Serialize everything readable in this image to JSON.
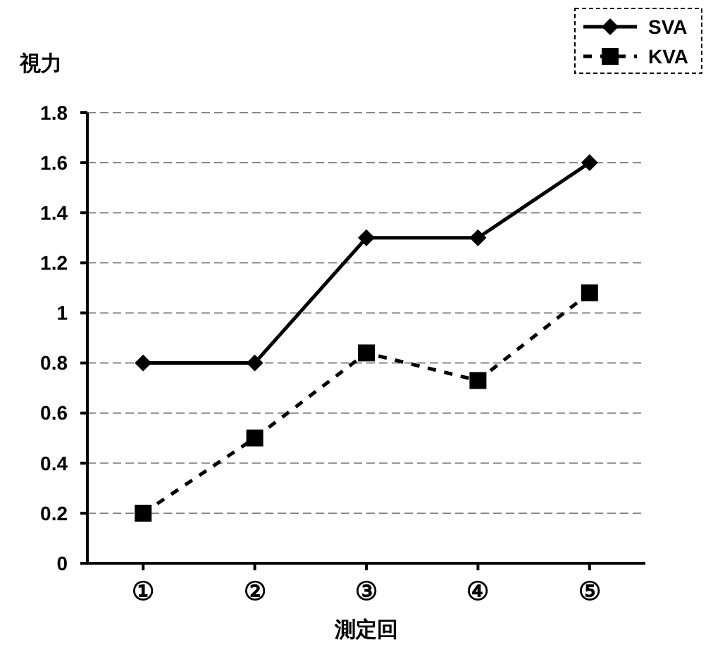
{
  "chart_data": {
    "type": "line",
    "ylabel": "視力",
    "xlabel": "測定回",
    "categories": [
      "①",
      "②",
      "③",
      "④",
      "⑤"
    ],
    "series": [
      {
        "name": "SVA",
        "color": "#000000",
        "values": [
          0.8,
          0.8,
          1.3,
          1.3,
          1.6
        ],
        "marker": "diamond",
        "line_style": "solid"
      },
      {
        "name": "KVA",
        "color": "#000000",
        "values": [
          0.2,
          0.5,
          0.84,
          0.73,
          1.08
        ],
        "marker": "square",
        "line_style": "dashed"
      }
    ],
    "ylim": [
      0,
      1.8
    ],
    "yticks": [
      0,
      0.2,
      0.4,
      0.6,
      0.8,
      {
        "value": 1,
        "label": "1"
      },
      1.2,
      1.4,
      1.6,
      1.8
    ],
    "grid": "y",
    "legend": "top right"
  }
}
